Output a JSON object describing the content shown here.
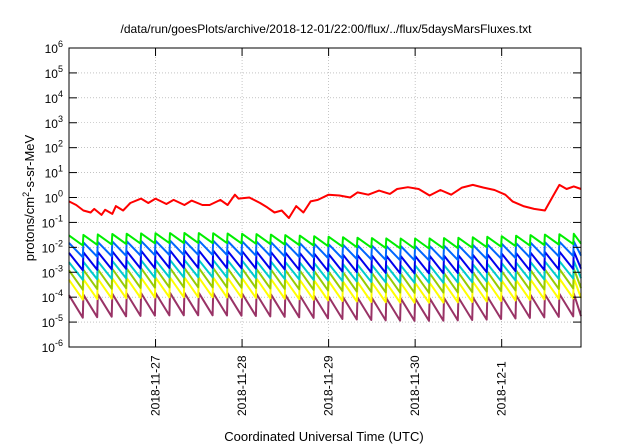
{
  "chart_data": {
    "type": "line",
    "title": "/data/run/goesPlots/archive/2018-12-01/22:00/flux/../flux/5daysMarsFluxes.txt",
    "xlabel": "Coordinated Universal Time (UTC)",
    "ylabel": {
      "pre": "protons/cm",
      "sup": "2",
      "post": "-s-sr-MeV"
    },
    "y_scale": "log",
    "ylim": [
      1e-06,
      1000000.0
    ],
    "y_ticks": [
      {
        "value": 1000000.0,
        "base": "10",
        "exp": "6"
      },
      {
        "value": 100000.0,
        "base": "10",
        "exp": "5"
      },
      {
        "value": 10000.0,
        "base": "10",
        "exp": "4"
      },
      {
        "value": 1000.0,
        "base": "10",
        "exp": "3"
      },
      {
        "value": 100.0,
        "base": "10",
        "exp": "2"
      },
      {
        "value": 10.0,
        "base": "10",
        "exp": "1"
      },
      {
        "value": 1.0,
        "base": "10",
        "exp": "0"
      },
      {
        "value": 0.1,
        "base": "10",
        "exp": "-1"
      },
      {
        "value": 0.01,
        "base": "10",
        "exp": "-2"
      },
      {
        "value": 0.001,
        "base": "10",
        "exp": "-3"
      },
      {
        "value": 0.0001,
        "base": "10",
        "exp": "-4"
      },
      {
        "value": 1e-05,
        "base": "10",
        "exp": "-5"
      },
      {
        "value": 1e-06,
        "base": "10",
        "exp": "-6"
      }
    ],
    "xlim": [
      "2018-11-26T00:00",
      "2018-12-01T22:00"
    ],
    "x_ticks": [
      {
        "value": "2018-11-27T00:00",
        "label": "2018-11-27"
      },
      {
        "value": "2018-11-28T00:00",
        "label": "2018-11-28"
      },
      {
        "value": "2018-11-29T00:00",
        "label": "2018-11-29"
      },
      {
        "value": "2018-11-30T00:00",
        "label": "2018-11-30"
      },
      {
        "value": "2018-12-01T00:00",
        "label": "2018-12-1"
      }
    ],
    "grid": true,
    "legend": "none",
    "series": [
      {
        "color": "#ff0000",
        "x": [
          "2018-11-26T00:00",
          "2018-11-26T02:00",
          "2018-11-26T04:00",
          "2018-11-26T06:00",
          "2018-11-26T07:00",
          "2018-11-26T09:00",
          "2018-11-26T10:00",
          "2018-11-26T12:00",
          "2018-11-26T13:00",
          "2018-11-26T15:00",
          "2018-11-26T17:00",
          "2018-11-26T20:00",
          "2018-11-26T22:00",
          "2018-11-27T00:00",
          "2018-11-27T03:00",
          "2018-11-27T05:00",
          "2018-11-27T08:00",
          "2018-11-27T10:00",
          "2018-11-27T13:00",
          "2018-11-27T15:00",
          "2018-11-27T18:00",
          "2018-11-27T20:00",
          "2018-11-27T22:00",
          "2018-11-27T23:00",
          "2018-11-28T02:00",
          "2018-11-28T05:00",
          "2018-11-28T07:00",
          "2018-11-28T09:00",
          "2018-11-28T11:00",
          "2018-11-28T13:00",
          "2018-11-28T15:00",
          "2018-11-28T17:00",
          "2018-11-28T19:00",
          "2018-11-28T21:00",
          "2018-11-29T00:00",
          "2018-11-29T03:00",
          "2018-11-29T06:00",
          "2018-11-29T08:00",
          "2018-11-29T11:00",
          "2018-11-29T14:00",
          "2018-11-29T17:00",
          "2018-11-29T19:00",
          "2018-11-29T22:00",
          "2018-11-30T01:00",
          "2018-11-30T04:00",
          "2018-11-30T07:00",
          "2018-11-30T10:00",
          "2018-11-30T13:00",
          "2018-11-30T16:00",
          "2018-11-30T19:00",
          "2018-11-30T22:00",
          "2018-12-01T01:00",
          "2018-12-01T03:00",
          "2018-12-01T06:00",
          "2018-12-01T09:00",
          "2018-12-01T12:00",
          "2018-12-01T14:00",
          "2018-12-01T16:00",
          "2018-12-01T18:00",
          "2018-12-01T20:00",
          "2018-12-01T22:00"
        ],
        "values": [
          0.7,
          0.5,
          0.3,
          0.25,
          0.35,
          0.2,
          0.32,
          0.22,
          0.45,
          0.3,
          0.6,
          0.9,
          0.6,
          0.9,
          0.55,
          0.8,
          0.5,
          0.75,
          0.5,
          0.5,
          0.8,
          0.5,
          1.3,
          0.9,
          1.0,
          0.6,
          0.4,
          0.25,
          0.3,
          0.15,
          0.45,
          0.25,
          0.7,
          0.8,
          1.3,
          1.2,
          1.0,
          1.6,
          1.3,
          1.9,
          1.4,
          2.2,
          2.6,
          2.2,
          1.2,
          2.0,
          1.3,
          2.5,
          3.2,
          2.5,
          2.0,
          1.3,
          0.7,
          0.45,
          0.35,
          0.3,
          1.0,
          3.2,
          2.2,
          2.8,
          2.2
        ]
      },
      {
        "color": "#00ee00",
        "peak": 0.03,
        "trough": 0.012
      },
      {
        "color": "#0066ff",
        "peak": 0.015,
        "trough": 0.004
      },
      {
        "color": "#0000ee",
        "peak": 0.006,
        "trough": 0.0012
      },
      {
        "color": "#00cccc",
        "peak": 0.0025,
        "trough": 0.0005
      },
      {
        "color": "#99cc00",
        "peak": 0.0012,
        "trough": 0.0002
      },
      {
        "color": "#ffff00",
        "peak": 0.0005,
        "trough": 8e-05
      },
      {
        "color": "#993366",
        "peak": 0.00012,
        "trough": 1.5e-05
      }
    ]
  }
}
